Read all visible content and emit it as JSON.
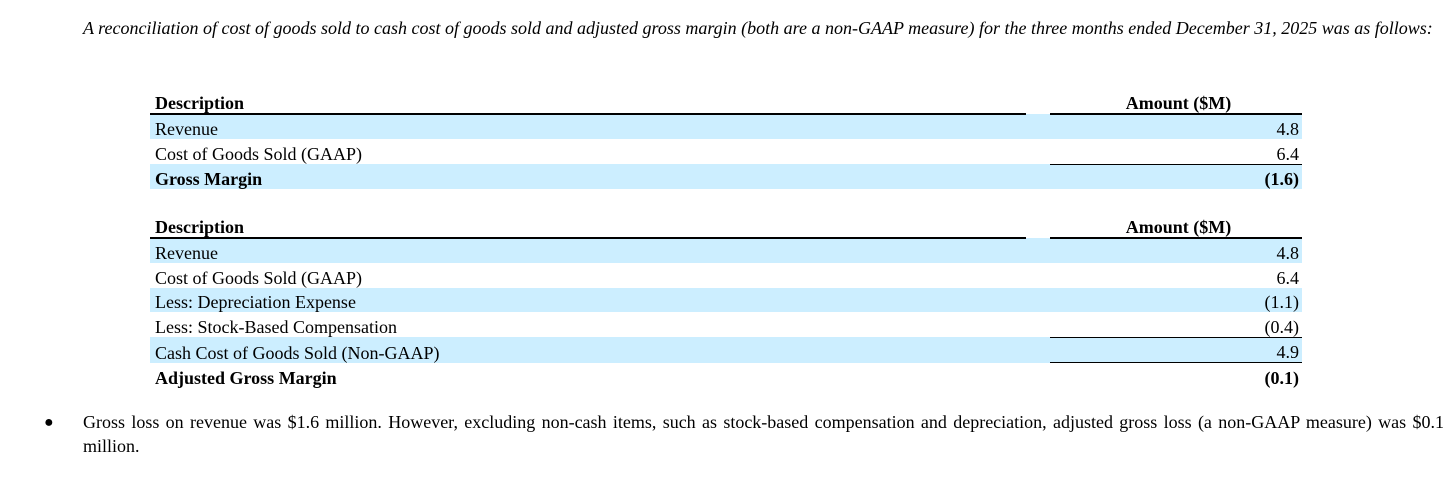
{
  "intro": {
    "text": "A reconciliation of cost of goods sold to cash cost of goods sold and adjusted gross margin (both are a non-GAAP measure) for the three months ended December 31, 2025 was as follows:"
  },
  "table1": {
    "headers": {
      "description": "Description",
      "amount": "Amount ($M)"
    },
    "rows": [
      {
        "label": "Revenue",
        "value": "4.8"
      },
      {
        "label": "Cost of Goods Sold (GAAP)",
        "value": "6.4"
      },
      {
        "label": "Gross Margin",
        "value": "(1.6)"
      }
    ]
  },
  "table2": {
    "headers": {
      "description": "Description",
      "amount": "Amount ($M)"
    },
    "rows": [
      {
        "label": "Revenue",
        "value": "4.8"
      },
      {
        "label": "Cost of Goods Sold (GAAP)",
        "value": "6.4"
      },
      {
        "label": "Less: Depreciation Expense",
        "value": "(1.1)"
      },
      {
        "label": "Less: Stock-Based Compensation",
        "value": "(0.4)"
      },
      {
        "label": "Cash Cost of Goods Sold (Non-GAAP)",
        "value": "4.9"
      },
      {
        "label": "Adjusted Gross Margin",
        "value": "(0.1)"
      }
    ]
  },
  "bullet": {
    "marker": "●",
    "text": "Gross loss on revenue was $1.6 million. However, excluding non-cash items, such as stock-based compensation and depreciation, adjusted gross loss (a non-GAAP measure) was $0.1 million."
  },
  "colors": {
    "row_shading": "#cceeff",
    "text": "#000000",
    "background": "#ffffff"
  }
}
